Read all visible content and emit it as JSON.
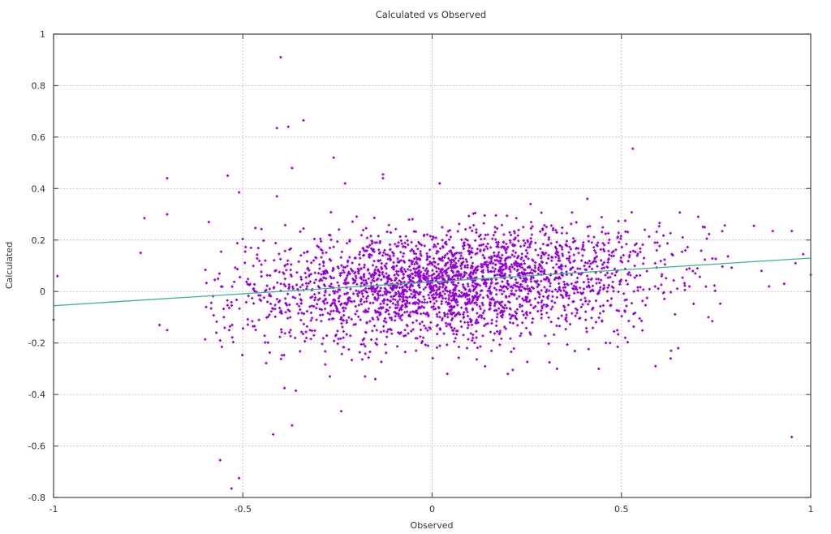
{
  "chart_data": {
    "type": "scatter",
    "title": "Calculated vs Observed",
    "xlabel": "Observed",
    "ylabel": "Calculated",
    "xlim": [
      -1,
      1
    ],
    "ylim": [
      -0.8,
      1
    ],
    "x_ticks": [
      "-1",
      "-0.5",
      "0",
      "0.5",
      "1"
    ],
    "x_tick_values": [
      -1,
      -0.5,
      0,
      0.5,
      1
    ],
    "y_ticks": [
      "1",
      "0.8",
      "0.6",
      "0.4",
      "0.2",
      "0",
      "-0.2",
      "-0.4",
      "-0.6",
      "-0.8"
    ],
    "y_tick_values": [
      1,
      0.8,
      0.6,
      0.4,
      0.2,
      0,
      -0.2,
      -0.4,
      -0.6,
      -0.8
    ],
    "grid": true,
    "legend": "none",
    "series": [
      {
        "name": "data points",
        "color": "#9400d3",
        "marker": "small plus",
        "approx_count": 2800,
        "cluster_description": "dense cloud centered near (0.05, 0.03), x mostly within -0.55..0.8, y mostly within -0.3..0.3",
        "cluster_params": {
          "count": 2700,
          "x_center": 0.05,
          "x_spread": 0.28,
          "x_min": -0.6,
          "x_max": 0.82,
          "y_center": 0.03,
          "y_spread": 0.11,
          "y_slope": 0.09,
          "y_min": -0.33,
          "y_max": 0.31
        },
        "outliers": [
          [
            -0.4,
            0.91
          ],
          [
            -0.41,
            0.635
          ],
          [
            -0.38,
            0.64
          ],
          [
            -0.34,
            0.665
          ],
          [
            -0.37,
            0.48
          ],
          [
            -0.26,
            0.52
          ],
          [
            -0.54,
            0.45
          ],
          [
            -0.13,
            0.455
          ],
          [
            -0.13,
            0.44
          ],
          [
            -0.23,
            0.42
          ],
          [
            0.02,
            0.42
          ],
          [
            -0.51,
            0.385
          ],
          [
            -0.41,
            0.37
          ],
          [
            -0.7,
            0.44
          ],
          [
            -0.7,
            0.3
          ],
          [
            -0.76,
            0.285
          ],
          [
            -0.77,
            0.15
          ],
          [
            -0.99,
            0.06
          ],
          [
            -1.0,
            -0.11
          ],
          [
            -0.59,
            0.27
          ],
          [
            0.53,
            0.555
          ],
          [
            0.41,
            0.36
          ],
          [
            0.26,
            0.34
          ],
          [
            0.95,
            0.235
          ],
          [
            0.9,
            0.235
          ],
          [
            0.85,
            0.255
          ],
          [
            0.72,
            0.25
          ],
          [
            0.98,
            0.145
          ],
          [
            0.96,
            0.11
          ],
          [
            1.0,
            0.065
          ],
          [
            0.87,
            0.08
          ],
          [
            0.93,
            0.03
          ],
          [
            0.89,
            0.02
          ],
          [
            0.73,
            -0.1
          ],
          [
            0.74,
            -0.115
          ],
          [
            0.59,
            -0.29
          ],
          [
            0.63,
            -0.26
          ],
          [
            0.65,
            -0.22
          ],
          [
            0.44,
            -0.3
          ],
          [
            0.33,
            -0.3
          ],
          [
            0.31,
            -0.275
          ],
          [
            -0.72,
            -0.13
          ],
          [
            -0.7,
            -0.15
          ],
          [
            -0.56,
            -0.19
          ],
          [
            -0.55,
            -0.1
          ],
          [
            -0.36,
            -0.385
          ],
          [
            -0.39,
            -0.375
          ],
          [
            -0.27,
            -0.33
          ],
          [
            -0.15,
            -0.34
          ],
          [
            -0.24,
            -0.465
          ],
          [
            -0.37,
            -0.52
          ],
          [
            -0.42,
            -0.555
          ],
          [
            -0.56,
            -0.655
          ],
          [
            -0.51,
            -0.725
          ],
          [
            -0.53,
            -0.765
          ],
          [
            0.95,
            -0.565
          ],
          [
            -0.22,
            -0.225
          ],
          [
            0.04,
            -0.32
          ],
          [
            0.2,
            -0.32
          ],
          [
            0.47,
            -0.2
          ],
          [
            0.51,
            -0.18
          ],
          [
            0.49,
            -0.215
          ]
        ]
      },
      {
        "name": "fit line",
        "type": "line",
        "color": "#3cb38a",
        "points": [
          [
            -1,
            -0.055
          ],
          [
            1,
            0.13
          ]
        ]
      }
    ]
  }
}
